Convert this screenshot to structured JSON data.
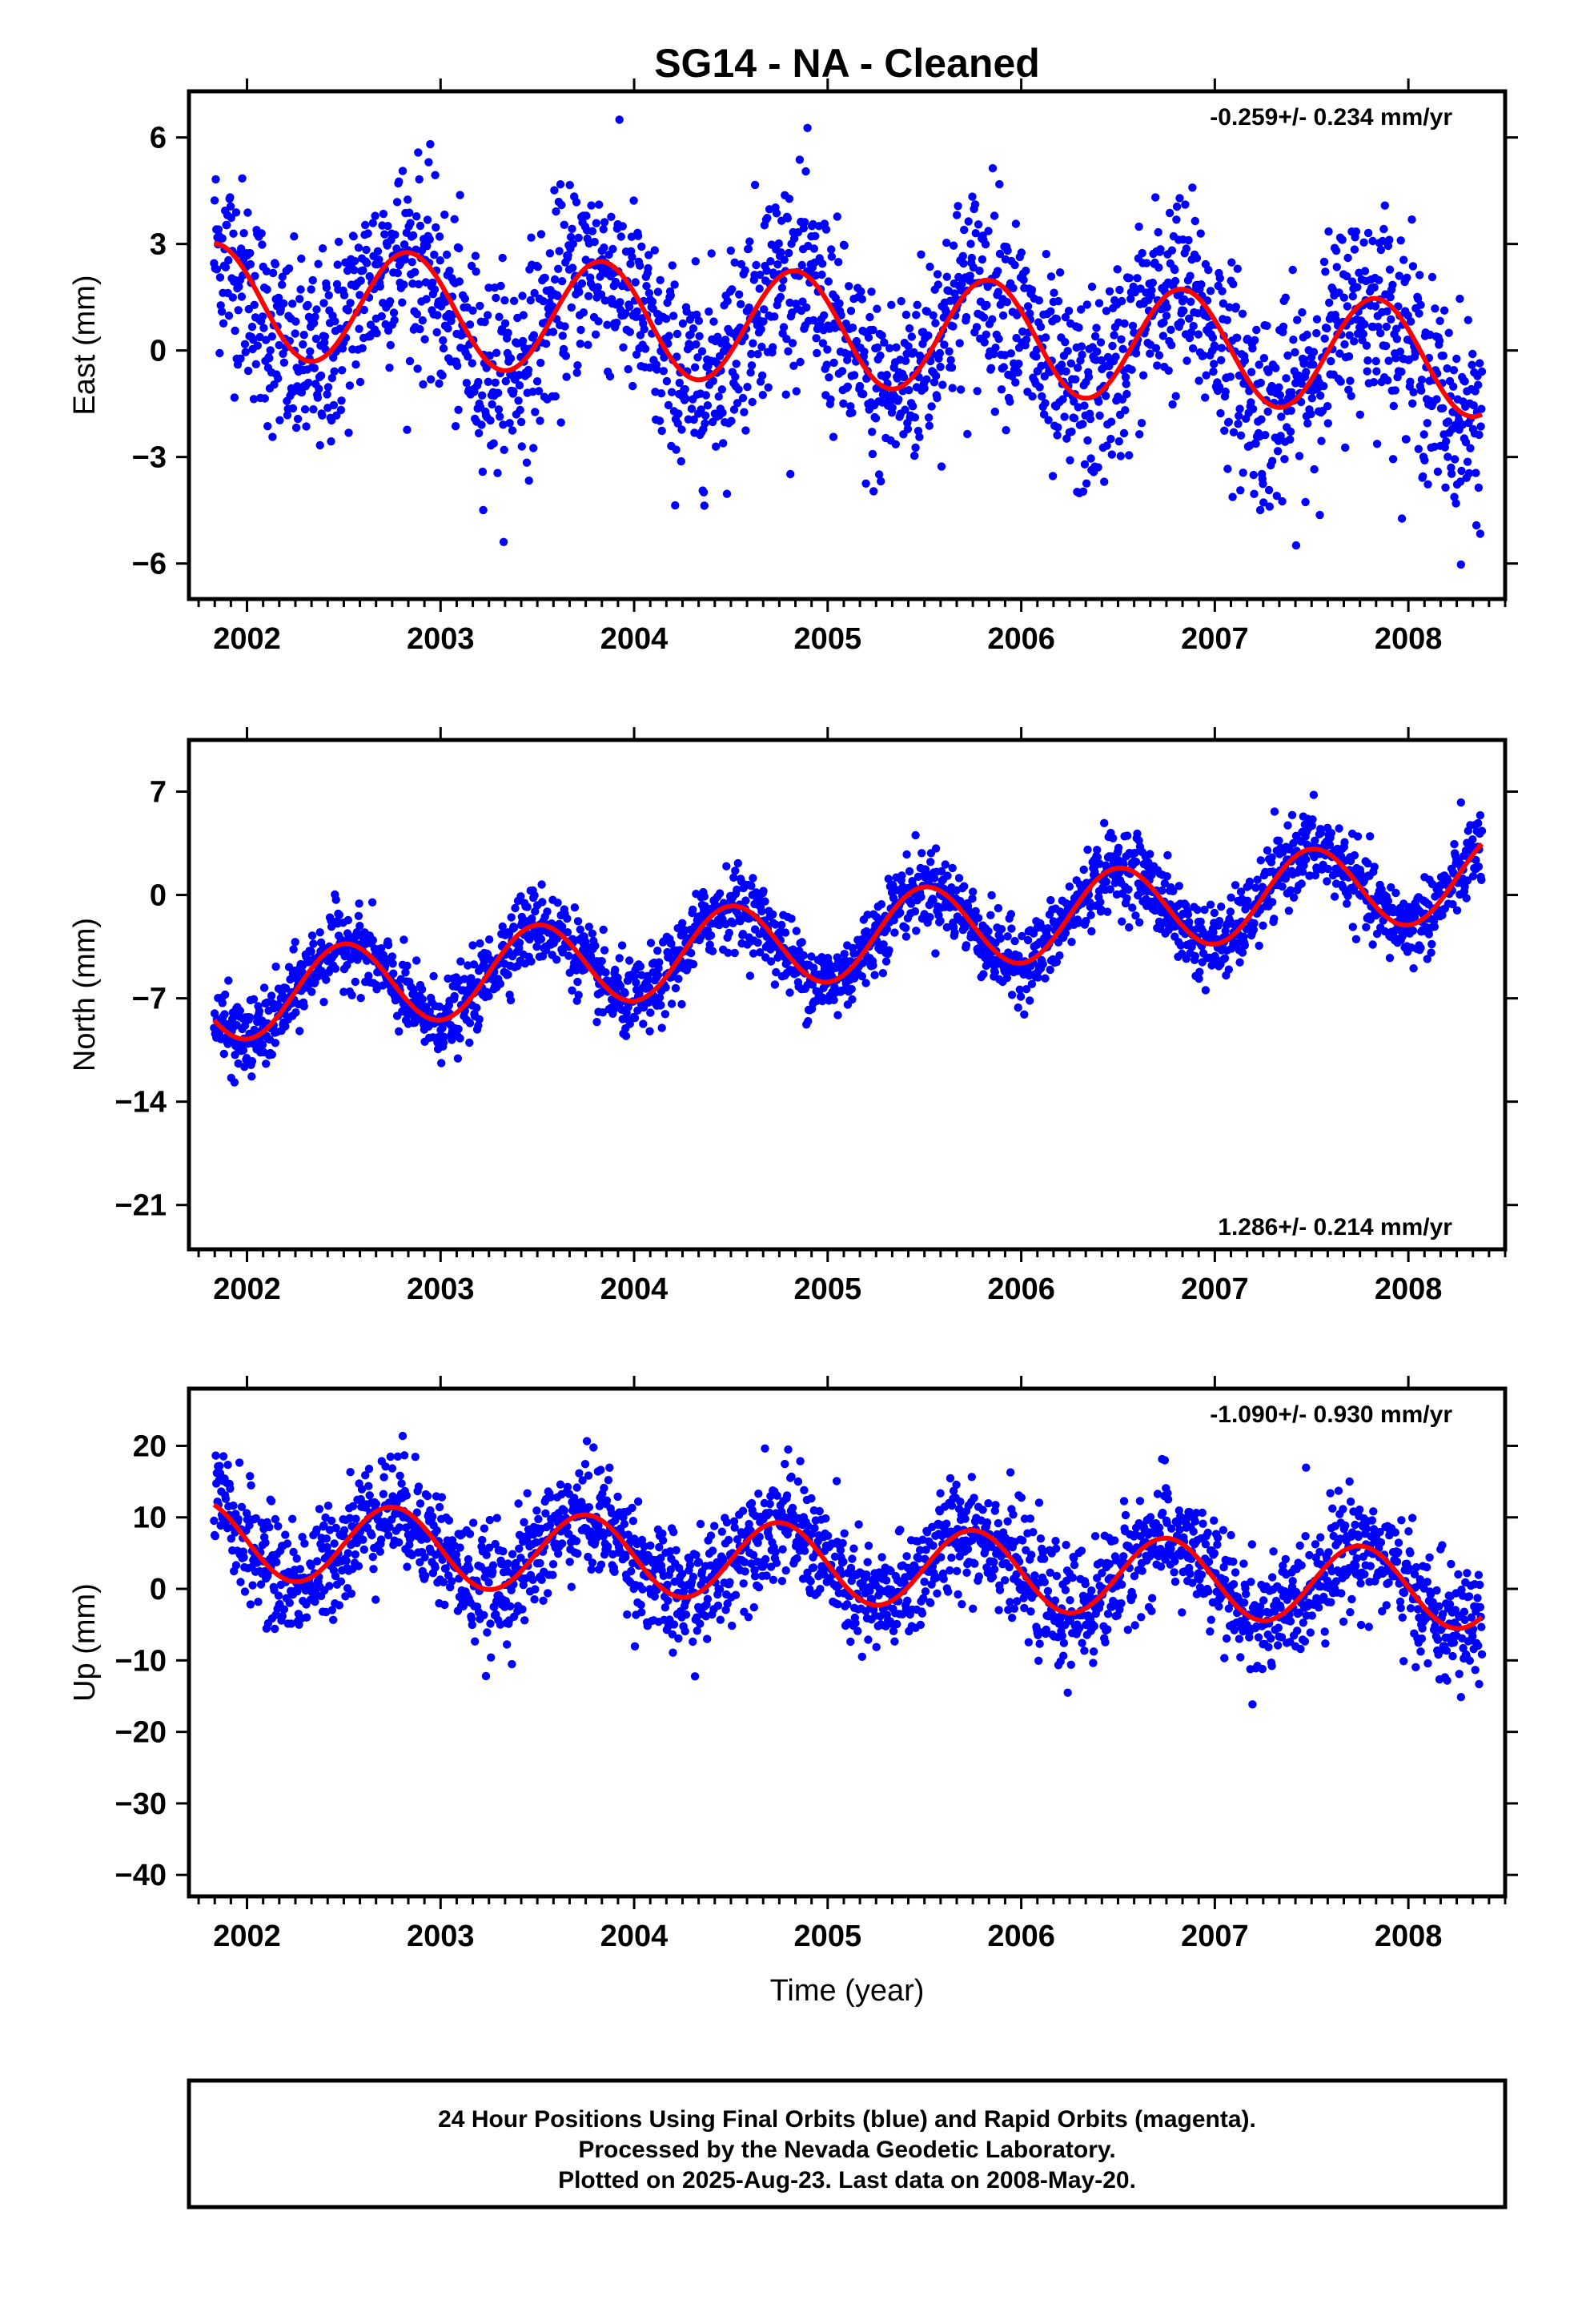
{
  "title": "SG14  - NA - Cleaned",
  "colors": {
    "points": "#0000ff",
    "fit": "#ff0000",
    "frame": "#000000"
  },
  "chart_data": [
    {
      "type": "scatter",
      "ylabel": "East (mm)",
      "xlabel": "",
      "xlim": [
        2001.7,
        2008.5
      ],
      "ylim": [
        -7,
        7.3
      ],
      "xticks": [
        "2002",
        "2003",
        "2004",
        "2005",
        "2006",
        "2007",
        "2008"
      ],
      "yticks": [
        "6",
        "3",
        "0",
        "−3",
        "−6"
      ],
      "ytick_values": [
        6,
        3,
        0,
        -3,
        -6
      ],
      "rate": "-0.259+/- 0.234 mm/yr",
      "rate_position": "top-right",
      "series": [
        {
          "kind": "points",
          "x_range": [
            2001.83,
            2008.38
          ],
          "annual_amplitude": 1.6,
          "annual_peak": 2003.8,
          "trend": -0.259,
          "offset": 0.5,
          "noise_sd": 1.4
        },
        {
          "kind": "fit",
          "x_range": [
            2001.83,
            2008.38
          ],
          "annual_amplitude": 1.6,
          "annual_peak": 2002.83,
          "trend": -0.259,
          "offset": 0.6
        }
      ]
    },
    {
      "type": "scatter",
      "ylabel": "North (mm)",
      "xlabel": "",
      "xlim": [
        2001.7,
        2008.5
      ],
      "ylim": [
        -24,
        10.5
      ],
      "xticks": [
        "2002",
        "2003",
        "2004",
        "2005",
        "2006",
        "2007",
        "2008"
      ],
      "yticks": [
        "7",
        "0",
        "−7",
        "−14",
        "−21"
      ],
      "ytick_values": [
        7,
        0,
        -7,
        -14,
        -21
      ],
      "rate": "1.286+/- 0.214 mm/yr",
      "rate_position": "bottom-right",
      "series": [
        {
          "kind": "points",
          "x_range": [
            2001.83,
            2008.38
          ],
          "annual_amplitude": 2.9,
          "annual_peak": 2002.5,
          "trend": 1.286,
          "offset": -3.0,
          "noise_sd": 1.3
        },
        {
          "kind": "fit",
          "x_range": [
            2001.83,
            2008.38
          ],
          "annual_amplitude": 2.9,
          "annual_peak": 2002.5,
          "trend": 1.286,
          "offset": -3.0
        }
      ]
    },
    {
      "type": "scatter",
      "ylabel": "Up (mm)",
      "xlabel": "Time (year)",
      "xlim": [
        2001.7,
        2008.5
      ],
      "ylim": [
        -43,
        28
      ],
      "xticks": [
        "2002",
        "2003",
        "2004",
        "2005",
        "2006",
        "2007",
        "2008"
      ],
      "yticks": [
        "20",
        "10",
        "0",
        "−10",
        "−20",
        "−30",
        "−40"
      ],
      "ytick_values": [
        20,
        10,
        0,
        -10,
        -20,
        -30,
        -40
      ],
      "rate": "-1.090+/- 0.930 mm/yr",
      "rate_position": "top-right",
      "series": [
        {
          "kind": "points",
          "x_range": [
            2001.83,
            2008.38
          ],
          "annual_amplitude": 5.5,
          "annual_peak": 2002.75,
          "trend": -1.09,
          "offset": 3.5,
          "noise_sd": 4.0
        },
        {
          "kind": "fit",
          "x_range": [
            2001.83,
            2008.38
          ],
          "annual_amplitude": 5.5,
          "annual_peak": 2002.75,
          "trend": -1.09,
          "offset": 3.5
        }
      ]
    }
  ],
  "footer": [
    "24 Hour Positions Using Final Orbits (blue) and Rapid Orbits (magenta).",
    "Processed by the Nevada Geodetic Laboratory.",
    "Plotted on 2025-Aug-23. Last data on 2008-May-20."
  ]
}
